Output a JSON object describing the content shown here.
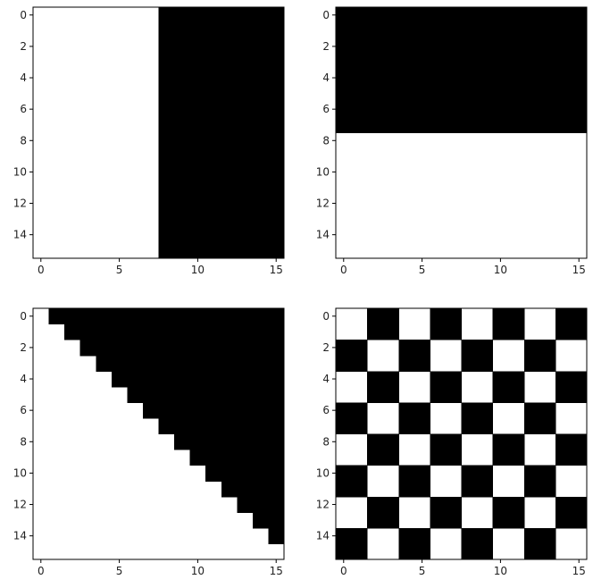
{
  "chart_data": [
    {
      "type": "heatmap",
      "title": "",
      "xlabel": "",
      "ylabel": "",
      "shape": [
        16,
        16
      ],
      "pattern": "vertical-split",
      "rule": "cell value 0 (white) where column < 8, value 1 (black) where column >= 8",
      "colormap": {
        "0": "#ffffff",
        "1": "#000000"
      },
      "xlim": [
        -0.5,
        15.5
      ],
      "ylim": [
        15.5,
        -0.5
      ],
      "xticks": [
        0,
        5,
        10,
        15
      ],
      "yticks": [
        0,
        2,
        4,
        6,
        8,
        10,
        12,
        14
      ],
      "grid": false
    },
    {
      "type": "heatmap",
      "title": "",
      "xlabel": "",
      "ylabel": "",
      "shape": [
        16,
        16
      ],
      "pattern": "horizontal-split",
      "rule": "cell value 1 (black) where row < 8, value 0 (white) where row >= 8",
      "colormap": {
        "0": "#ffffff",
        "1": "#000000"
      },
      "xlim": [
        -0.5,
        15.5
      ],
      "ylim": [
        15.5,
        -0.5
      ],
      "xticks": [
        0,
        5,
        10,
        15
      ],
      "yticks": [
        0,
        2,
        4,
        6,
        8,
        10,
        12,
        14
      ],
      "grid": false
    },
    {
      "type": "heatmap",
      "title": "",
      "xlabel": "",
      "ylabel": "",
      "shape": [
        16,
        16
      ],
      "pattern": "strict-upper-triangle",
      "rule": "cell value 1 (black) where column > row, value 0 (white) otherwise",
      "colormap": {
        "0": "#ffffff",
        "1": "#000000"
      },
      "xlim": [
        -0.5,
        15.5
      ],
      "ylim": [
        15.5,
        -0.5
      ],
      "xticks": [
        0,
        5,
        10,
        15
      ],
      "yticks": [
        0,
        2,
        4,
        6,
        8,
        10,
        12,
        14
      ],
      "grid": false
    },
    {
      "type": "heatmap",
      "title": "",
      "xlabel": "",
      "ylabel": "",
      "shape": [
        16,
        16
      ],
      "pattern": "checkerboard-2x2",
      "rule": "cell value 1 (black) where (floor(row/2) + floor(column/2)) is odd, value 0 (white) otherwise",
      "colormap": {
        "0": "#ffffff",
        "1": "#000000"
      },
      "xlim": [
        -0.5,
        15.5
      ],
      "ylim": [
        15.5,
        -0.5
      ],
      "xticks": [
        0,
        5,
        10,
        15
      ],
      "yticks": [
        0,
        2,
        4,
        6,
        8,
        10,
        12,
        14
      ],
      "grid": false
    }
  ]
}
